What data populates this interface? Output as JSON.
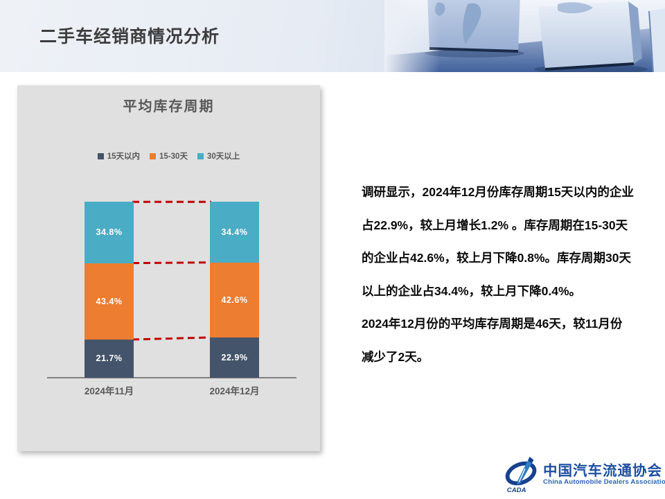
{
  "header": {
    "title": "二手车经销商情况分析"
  },
  "chart_data": {
    "type": "bar",
    "stacked": true,
    "title": "平均库存周期",
    "categories": [
      "2024年11月",
      "2024年12月"
    ],
    "series": [
      {
        "name": "15天以内",
        "color": "#44546A",
        "values": [
          21.7,
          22.9
        ]
      },
      {
        "name": "15-30天",
        "color": "#ED7D31",
        "values": [
          43.4,
          42.6
        ]
      },
      {
        "name": "30天以上",
        "color": "#4AACC5",
        "values": [
          34.8,
          34.4
        ]
      }
    ],
    "value_suffix": "%",
    "connector_color": "#C00000",
    "legend_position": "top",
    "ylim": [
      0,
      100
    ],
    "grid": false
  },
  "commentary": {
    "lines": [
      "调研显示，2024年12月份库存周期15天以内的企业",
      "占22.9%，较上月增长1.2% 。库存周期在15-30天",
      "的企业占42.6%，较上月下降0.8%。库存周期30天",
      "以上的企业占34.4%，较上月下降0.4%。",
      "2024年12月份的平均库存周期是46天，较11月份",
      "减少了2天。"
    ]
  },
  "footer": {
    "logo_acronym": "CADA",
    "org_name_zh": "中国汽车流通协会",
    "org_name_en": "China Automobile Dealers Association",
    "brand_color": "#1D4FA1"
  }
}
